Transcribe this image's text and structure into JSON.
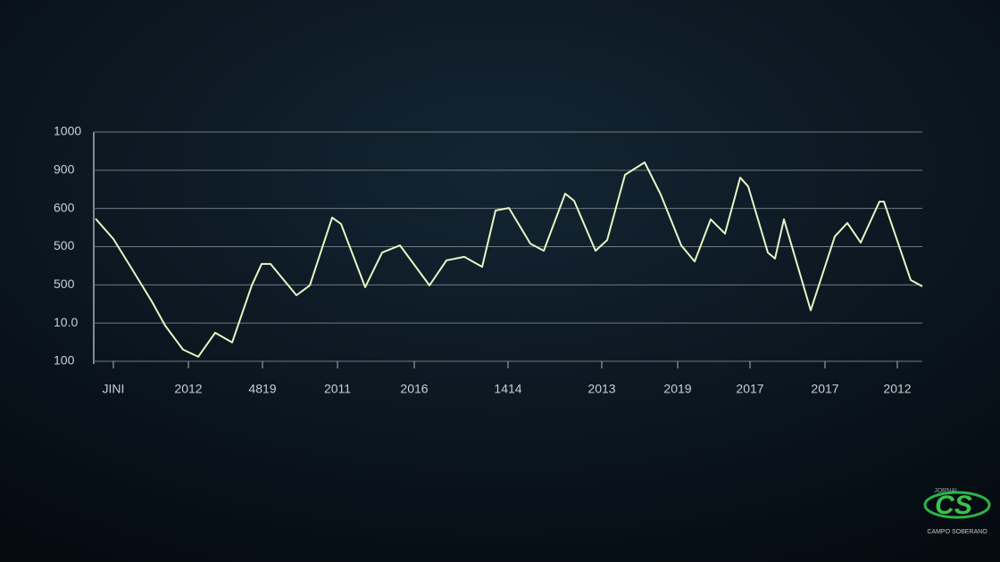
{
  "chart_data": {
    "type": "line",
    "color": "#e6f5c4",
    "grid": true,
    "xlim": [
      0,
      928
    ],
    "ylim": [
      100,
      1000
    ],
    "yticks": [
      100,
      {
        "value": 250,
        "label": "10.0"
      },
      {
        "value": 400,
        "label": "500"
      },
      {
        "value": 550,
        "label": "500"
      },
      {
        "value": 700,
        "label": "600"
      },
      {
        "value": 850,
        "label": "900"
      },
      1000
    ],
    "xticks": [
      {
        "value": 22,
        "label": "JINI"
      },
      {
        "value": 106,
        "label": "2012"
      },
      {
        "value": 189,
        "label": "4819"
      },
      {
        "value": 273,
        "label": "2011"
      },
      {
        "value": 359,
        "label": "2016"
      },
      {
        "value": 464,
        "label": "1414"
      },
      {
        "value": 569,
        "label": "2013"
      },
      {
        "value": 654,
        "label": "2019"
      },
      {
        "value": 735,
        "label": "2017"
      },
      {
        "value": 819,
        "label": "2017"
      },
      {
        "value": 900,
        "label": "2012"
      }
    ],
    "x": [
      2,
      22,
      45,
      65,
      80,
      100,
      117,
      136,
      155,
      177,
      188,
      198,
      227,
      242,
      267,
      277,
      304,
      323,
      343,
      376,
      395,
      415,
      435,
      450,
      465,
      489,
      504,
      528,
      538,
      562,
      575,
      595,
      617,
      635,
      658,
      673,
      691,
      707,
      724,
      733,
      755,
      763,
      773,
      803,
      830,
      844,
      859,
      880,
      885,
      915,
      928
    ],
    "values": [
      660,
      580,
      450,
      335,
      240,
      146,
      118,
      212,
      174,
      398,
      482,
      482,
      359,
      398,
      664,
      639,
      391,
      527,
      555,
      398,
      496,
      510,
      471,
      692,
      702,
      562,
      534,
      758,
      730,
      534,
      576,
      832,
      881,
      755,
      555,
      492,
      657,
      601,
      821,
      786,
      527,
      503,
      657,
      300,
      590,
      643,
      566,
      727,
      727,
      419,
      394
    ]
  },
  "logo": {
    "top": "JORNAL",
    "mark": "CS",
    "bottom": "CAMPO SOBERANO"
  }
}
